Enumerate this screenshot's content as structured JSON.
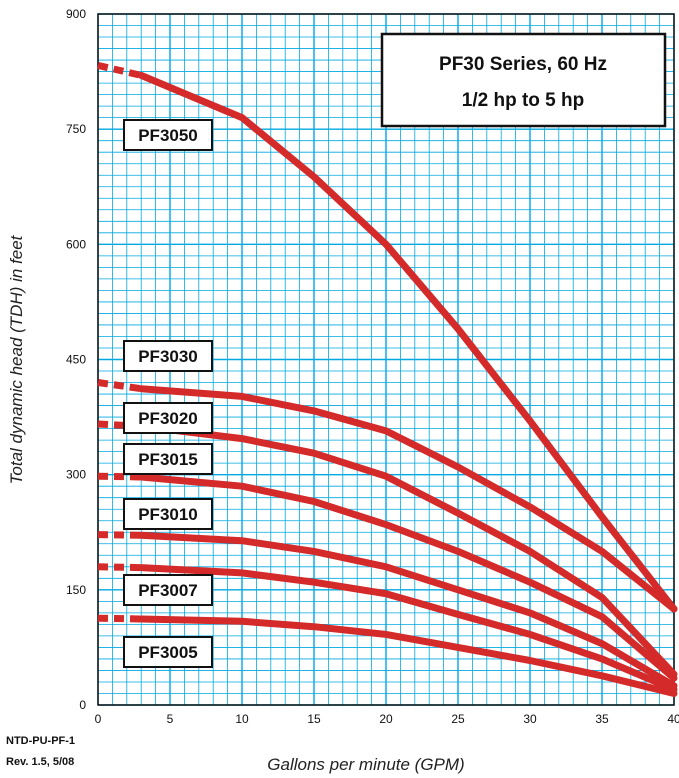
{
  "chart_data": {
    "type": "line",
    "title": [
      "PF30 Series, 60 Hz",
      "1/2 hp to 5 hp"
    ],
    "xlabel": "Gallons per minute (GPM)",
    "ylabel": "Total dynamic head (TDH) in feet",
    "xlim": [
      0,
      40
    ],
    "ylim": [
      0,
      900
    ],
    "x_ticks": [
      "0",
      "5",
      "10",
      "15",
      "20",
      "25",
      "30",
      "35",
      "40"
    ],
    "y_ticks": [
      "0",
      "150",
      "300",
      "450",
      "600",
      "750",
      "900"
    ],
    "grid": true,
    "grid_color": "#00a8e0",
    "series_color": "#d42a2a",
    "series": [
      {
        "name": "PF3050",
        "dashed": [
          [
            0,
            833
          ],
          [
            3,
            820
          ]
        ],
        "points": [
          [
            3,
            820
          ],
          [
            10,
            765
          ],
          [
            15,
            688
          ],
          [
            20,
            600
          ],
          [
            25,
            490
          ],
          [
            30,
            370
          ],
          [
            35,
            245
          ],
          [
            40,
            125
          ]
        ]
      },
      {
        "name": "PF3030",
        "dashed": [
          [
            0,
            420
          ],
          [
            3,
            412
          ]
        ],
        "points": [
          [
            3,
            412
          ],
          [
            10,
            402
          ],
          [
            15,
            383
          ],
          [
            20,
            357
          ],
          [
            25,
            310
          ],
          [
            30,
            258
          ],
          [
            35,
            200
          ],
          [
            40,
            125
          ]
        ]
      },
      {
        "name": "PF3020",
        "dashed": [
          [
            0,
            366
          ],
          [
            3,
            363
          ]
        ],
        "points": [
          [
            3,
            363
          ],
          [
            10,
            347
          ],
          [
            15,
            328
          ],
          [
            20,
            298
          ],
          [
            25,
            250
          ],
          [
            30,
            200
          ],
          [
            35,
            140
          ],
          [
            40,
            40
          ]
        ]
      },
      {
        "name": "PF3015",
        "dashed": [
          [
            0,
            298
          ],
          [
            3,
            297
          ]
        ],
        "points": [
          [
            3,
            297
          ],
          [
            10,
            285
          ],
          [
            15,
            265
          ],
          [
            20,
            235
          ],
          [
            25,
            200
          ],
          [
            30,
            160
          ],
          [
            35,
            115
          ],
          [
            40,
            35
          ]
        ]
      },
      {
        "name": "PF3010",
        "dashed": [
          [
            0,
            222
          ],
          [
            3,
            221
          ]
        ],
        "points": [
          [
            3,
            221
          ],
          [
            10,
            214
          ],
          [
            15,
            200
          ],
          [
            20,
            180
          ],
          [
            25,
            150
          ],
          [
            30,
            120
          ],
          [
            35,
            80
          ],
          [
            40,
            25
          ]
        ]
      },
      {
        "name": "PF3007",
        "dashed": [
          [
            0,
            180
          ],
          [
            3,
            179
          ]
        ],
        "points": [
          [
            3,
            179
          ],
          [
            10,
            172
          ],
          [
            15,
            160
          ],
          [
            20,
            145
          ],
          [
            25,
            118
          ],
          [
            30,
            92
          ],
          [
            35,
            60
          ],
          [
            40,
            20
          ]
        ]
      },
      {
        "name": "PF3005",
        "dashed": [
          [
            0,
            113
          ],
          [
            3,
            112
          ]
        ],
        "points": [
          [
            3,
            112
          ],
          [
            10,
            109
          ],
          [
            15,
            102
          ],
          [
            20,
            92
          ],
          [
            25,
            75
          ],
          [
            30,
            58
          ],
          [
            35,
            38
          ],
          [
            40,
            15
          ]
        ]
      }
    ],
    "curve_labels": [
      {
        "text": "PF3050",
        "series": "PF3050"
      },
      {
        "text": "PF3030",
        "series": "PF3030"
      },
      {
        "text": "PF3020",
        "series": "PF3020"
      },
      {
        "text": "PF3015",
        "series": "PF3015"
      },
      {
        "text": "PF3010",
        "series": "PF3010"
      },
      {
        "text": "PF3007",
        "series": "PF3007"
      },
      {
        "text": "PF3005",
        "series": "PF3005"
      }
    ]
  },
  "footer": {
    "doc_id": "NTD-PU-PF-1",
    "revision": "Rev. 1.5, 5/08"
  }
}
